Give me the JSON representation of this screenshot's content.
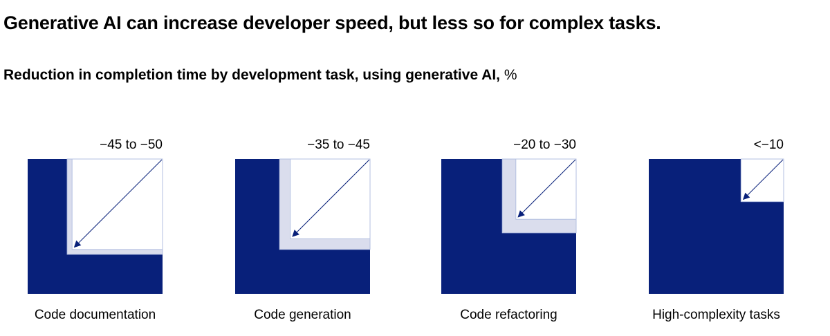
{
  "title": "Generative AI can increase developer speed, but less so for complex tasks.",
  "subtitle": "Reduction in completion time by development task, using generative AI,",
  "subtitle_unit": "%",
  "chart_data": {
    "type": "area-square",
    "title": "Reduction in completion time by development task, using generative AI, %",
    "categories": [
      "Code documentation",
      "Code generation",
      "Code refactoring",
      "High-complexity tasks"
    ],
    "value_labels": [
      "−45 to −50",
      "−35 to −45",
      "−20 to −30",
      "<−10"
    ],
    "ranges": [
      [
        45,
        50
      ],
      [
        35,
        45
      ],
      [
        20,
        30
      ],
      [
        10,
        10
      ]
    ],
    "colors": {
      "base": "#08207a",
      "range": "#dadded",
      "border": "#b3bfe0",
      "arrow": "#08207a"
    }
  }
}
